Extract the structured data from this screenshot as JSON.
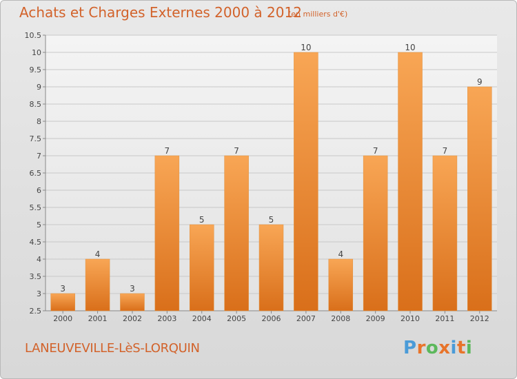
{
  "header": {
    "title": "Achats et Charges Externes 2000 à 2012",
    "unit": "(en milliers d'€)"
  },
  "footer": {
    "commune": "LANEUVEVILLE-LèS-LORQUIN",
    "logo_text": "Proxiti"
  },
  "colors": {
    "title": "#d2622a",
    "bar_top": "#f8a655",
    "bar_bottom": "#d96f1a",
    "grid": "#c8c8c8",
    "logo_letters": [
      "#4a9bd8",
      "#e8742a",
      "#5cb85c",
      "#e8742a",
      "#4a9bd8",
      "#e8742a",
      "#5cb85c"
    ]
  },
  "chart_data": {
    "type": "bar",
    "categories": [
      "2000",
      "2001",
      "2002",
      "2003",
      "2004",
      "2005",
      "2006",
      "2007",
      "2008",
      "2009",
      "2010",
      "2011",
      "2012"
    ],
    "values": [
      3,
      4,
      3,
      7,
      5,
      7,
      5,
      10,
      4,
      7,
      10,
      7,
      9
    ],
    "ylim": [
      2.5,
      10.5
    ],
    "yticks": [
      "2.5",
      "3",
      "3.5",
      "4",
      "4.5",
      "5",
      "5.5",
      "6",
      "6.5",
      "7",
      "7.5",
      "8",
      "8.5",
      "9",
      "9.5",
      "10",
      "10.5"
    ],
    "grid": true
  }
}
